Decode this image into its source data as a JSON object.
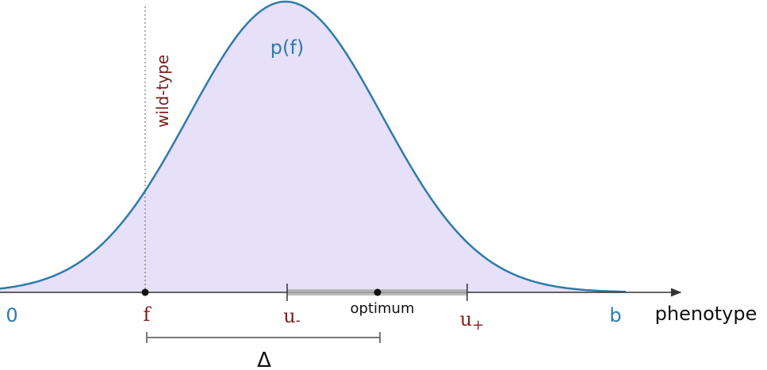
{
  "curve_label": "p(f)",
  "wild_type_label": "wild-type",
  "axis": {
    "title": "phenotype",
    "start_label": "0",
    "end_label": "b"
  },
  "points": {
    "f": "f",
    "u_minus": {
      "label": "u",
      "subscript": "-"
    },
    "optimum": "optimum",
    "u_plus": {
      "label": "u",
      "subscript": "+"
    }
  },
  "distance_label": "Δ"
}
